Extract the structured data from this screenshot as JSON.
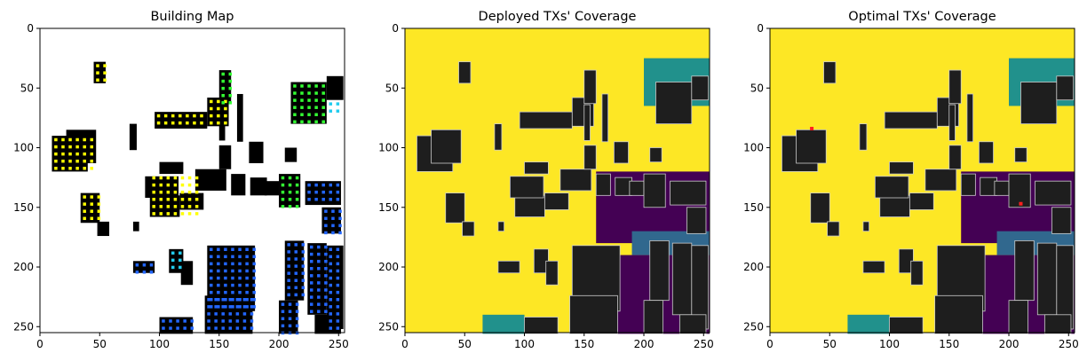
{
  "chart_data": [
    {
      "type": "heatmap",
      "title": "Building Map",
      "xlim": [
        0,
        255
      ],
      "ylim": [
        255,
        0
      ],
      "xticks": [
        0,
        50,
        100,
        150,
        200,
        250
      ],
      "yticks": [
        0,
        50,
        100,
        150,
        200,
        250
      ],
      "grid": false,
      "background_color": "#ffffff",
      "building_color": "#000000",
      "marker_colors": [
        "#ffff00",
        "#33ff33",
        "#2266ff",
        "#22ccee"
      ]
    },
    {
      "type": "heatmap",
      "title": "Deployed TXs' Coverage",
      "xlim": [
        0,
        255
      ],
      "ylim": [
        255,
        0
      ],
      "xticks": [
        0,
        50,
        100,
        150,
        200,
        250
      ],
      "yticks": [
        0,
        50,
        100,
        150,
        200,
        250
      ],
      "grid": false,
      "colormap": [
        "#440154",
        "#31688e",
        "#21918c",
        "#5ec962",
        "#fde725"
      ],
      "building_color": "#1e1e1e"
    },
    {
      "type": "heatmap",
      "title": "Optimal TXs' Coverage",
      "xlim": [
        0,
        255
      ],
      "ylim": [
        255,
        0
      ],
      "xticks": [
        0,
        50,
        100,
        150,
        200,
        250
      ],
      "yticks": [
        0,
        50,
        100,
        150,
        200,
        250
      ],
      "grid": false,
      "colormap": [
        "#440154",
        "#31688e",
        "#21918c",
        "#5ec962",
        "#fde725"
      ],
      "building_color": "#1e1e1e",
      "tx_points": [
        [
          35,
          84
        ],
        [
          210,
          147
        ]
      ],
      "tx_color": "#ff2020"
    }
  ]
}
